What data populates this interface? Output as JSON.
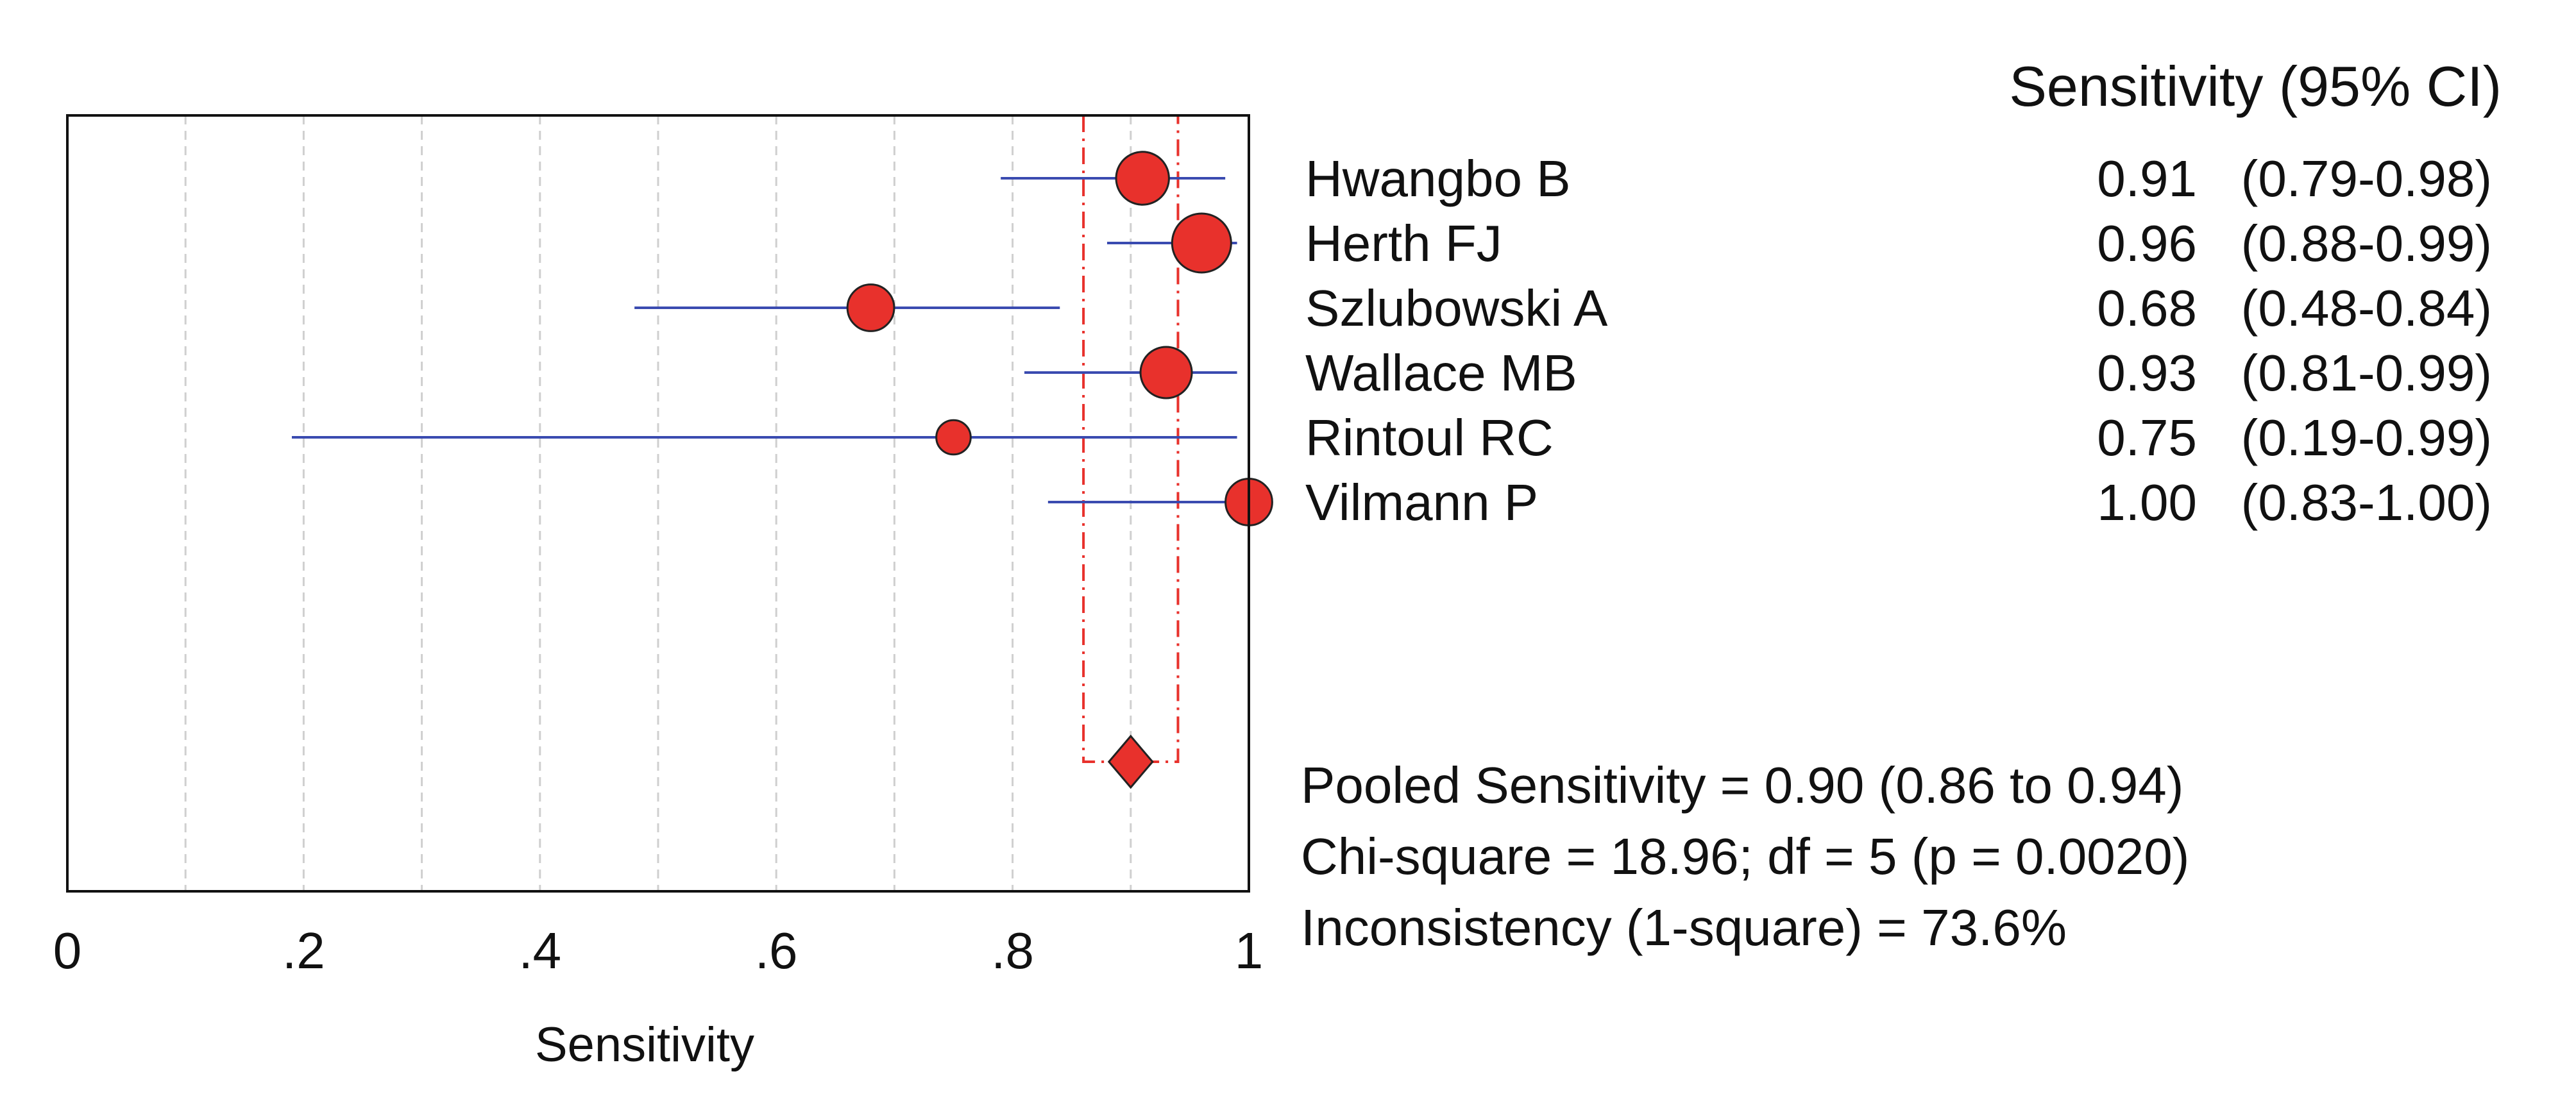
{
  "chart_data": {
    "type": "forest",
    "xlabel": "Sensitivity",
    "xlim": [
      0,
      1
    ],
    "x_ticks": [
      0,
      0.2,
      0.4,
      0.6,
      0.8,
      1
    ],
    "x_tick_labels": [
      "0",
      ".2",
      ".4",
      ".6",
      ".8",
      "1"
    ],
    "grid": "vertical dashed lines",
    "column_header": "Sensitivity (95% CI)",
    "studies": [
      {
        "name": "Hwangbo B",
        "value": 0.91,
        "ci_low": 0.79,
        "ci_high": 0.98,
        "value_label": "0.91",
        "ci_label": "(0.79-0.98)",
        "weight": 0.8
      },
      {
        "name": "Herth FJ",
        "value": 0.96,
        "ci_low": 0.88,
        "ci_high": 0.99,
        "value_label": "0.96",
        "ci_label": "(0.88-0.99)",
        "weight": 1.0
      },
      {
        "name": "Szlubowski A",
        "value": 0.68,
        "ci_low": 0.48,
        "ci_high": 0.84,
        "value_label": "0.68",
        "ci_label": "(0.48-0.84)",
        "weight": 0.6
      },
      {
        "name": "Wallace MB",
        "value": 0.93,
        "ci_low": 0.81,
        "ci_high": 0.99,
        "value_label": "0.93",
        "ci_label": "(0.81-0.99)",
        "weight": 0.75
      },
      {
        "name": "Rintoul RC",
        "value": 0.75,
        "ci_low": 0.19,
        "ci_high": 0.99,
        "value_label": "0.75",
        "ci_label": "(0.19-0.99)",
        "weight": 0.2
      },
      {
        "name": "Vilmann P",
        "value": 1.0,
        "ci_low": 0.83,
        "ci_high": 1.0,
        "value_label": "1.00",
        "ci_label": "(0.83-1.00)",
        "weight": 0.6
      }
    ],
    "pooled": {
      "value": 0.9,
      "ci_low": 0.86,
      "ci_high": 0.94
    },
    "stats": [
      "Pooled Sensitivity = 0.90 (0.86 to 0.94)",
      "Chi-square = 18.96; df = 5 (p = 0.0020)",
      "Inconsistency (1-square) = 73.6%"
    ],
    "colors": {
      "point": "#e8312c",
      "ci_line": "#3a4bb0",
      "pooled_line": "#e8312c",
      "grid": "#cfcfcf"
    }
  }
}
